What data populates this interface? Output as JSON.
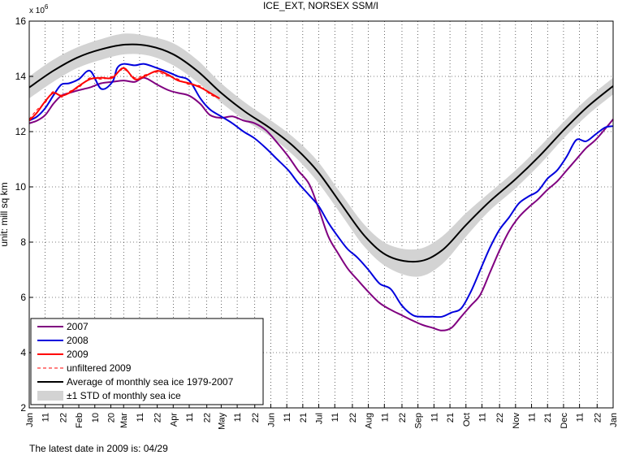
{
  "chart_data": {
    "type": "line",
    "title": "ICE_EXT, NORSEX SSM/I",
    "ylabel": "unit: mill sq km",
    "y_multiplier": "x 10",
    "y_multiplier_exp": "6",
    "ylim": [
      2,
      16
    ],
    "yticks": [
      "2",
      "4",
      "6",
      "8",
      "10",
      "12",
      "14",
      "16"
    ],
    "x_domain_days": [
      0,
      365
    ],
    "xticks": [
      {
        "day": 0,
        "label": "Jan"
      },
      {
        "day": 10,
        "label": "11"
      },
      {
        "day": 21,
        "label": "22"
      },
      {
        "day": 31,
        "label": "Feb"
      },
      {
        "day": 41,
        "label": "10"
      },
      {
        "day": 51,
        "label": "20"
      },
      {
        "day": 59,
        "label": "Mar"
      },
      {
        "day": 69,
        "label": "11"
      },
      {
        "day": 80,
        "label": "22"
      },
      {
        "day": 90,
        "label": "Apr"
      },
      {
        "day": 100,
        "label": "11"
      },
      {
        "day": 111,
        "label": "22"
      },
      {
        "day": 120,
        "label": "May"
      },
      {
        "day": 130,
        "label": "11"
      },
      {
        "day": 141,
        "label": "22"
      },
      {
        "day": 151,
        "label": "Jun"
      },
      {
        "day": 161,
        "label": "11"
      },
      {
        "day": 171,
        "label": "21"
      },
      {
        "day": 181,
        "label": "Jul"
      },
      {
        "day": 191,
        "label": "11"
      },
      {
        "day": 202,
        "label": "22"
      },
      {
        "day": 212,
        "label": "Aug"
      },
      {
        "day": 222,
        "label": "11"
      },
      {
        "day": 233,
        "label": "22"
      },
      {
        "day": 243,
        "label": "Sep"
      },
      {
        "day": 253,
        "label": "11"
      },
      {
        "day": 263,
        "label": "21"
      },
      {
        "day": 273,
        "label": "Oct"
      },
      {
        "day": 283,
        "label": "11"
      },
      {
        "day": 294,
        "label": "22"
      },
      {
        "day": 304,
        "label": "Nov"
      },
      {
        "day": 314,
        "label": "11"
      },
      {
        "day": 324,
        "label": "21"
      },
      {
        "day": 334,
        "label": "Dec"
      },
      {
        "day": 344,
        "label": "11"
      },
      {
        "day": 355,
        "label": "22"
      },
      {
        "day": 365,
        "label": "Jan"
      }
    ],
    "grid": true,
    "legend_position": "bottom-left",
    "footer": "The latest date in 2009 is: 04/29",
    "std_band": {
      "name": "±1 STD of monthly sea ice",
      "color": "#d3d3d3",
      "x": [
        0,
        15,
        30,
        45,
        60,
        75,
        90,
        105,
        120,
        135,
        150,
        165,
        180,
        195,
        210,
        225,
        243,
        258,
        273,
        288,
        304,
        319,
        334,
        349,
        365
      ],
      "lower": [
        13.2,
        13.8,
        14.3,
        14.6,
        14.8,
        14.75,
        14.4,
        13.8,
        13.05,
        12.4,
        11.85,
        11.15,
        10.2,
        9.0,
        7.8,
        7.05,
        6.75,
        7.2,
        8.2,
        9.15,
        9.95,
        10.8,
        11.75,
        12.6,
        13.35
      ],
      "upper": [
        14.0,
        14.6,
        15.05,
        15.35,
        15.55,
        15.45,
        15.2,
        14.6,
        13.75,
        13.05,
        12.45,
        11.8,
        10.95,
        9.75,
        8.6,
        7.9,
        7.75,
        8.2,
        9.05,
        9.8,
        10.6,
        11.45,
        12.35,
        13.2,
        13.95
      ]
    },
    "series": [
      {
        "name": "2007",
        "color": "#800080",
        "x": [
          0,
          5,
          10,
          15,
          20,
          25,
          31,
          38,
          45,
          52,
          59,
          66,
          72,
          80,
          87,
          93,
          100,
          107,
          113,
          120,
          127,
          134,
          141,
          148,
          155,
          162,
          168,
          175,
          181,
          187,
          193,
          199,
          205,
          212,
          219,
          226,
          233,
          240,
          246,
          252,
          258,
          264,
          270,
          276,
          282,
          288,
          294,
          300,
          306,
          312,
          318,
          324,
          330,
          336,
          342,
          348,
          354,
          360,
          365
        ],
        "y": [
          12.3,
          12.4,
          12.6,
          13.0,
          13.3,
          13.4,
          13.5,
          13.6,
          13.75,
          13.8,
          13.85,
          13.8,
          13.95,
          13.7,
          13.5,
          13.4,
          13.3,
          13.0,
          12.6,
          12.5,
          12.55,
          12.4,
          12.3,
          12.05,
          11.6,
          11.1,
          10.6,
          10.1,
          9.2,
          8.2,
          7.6,
          7.05,
          6.65,
          6.2,
          5.8,
          5.55,
          5.35,
          5.15,
          5.0,
          4.9,
          4.8,
          4.9,
          5.3,
          5.7,
          6.1,
          6.9,
          7.7,
          8.4,
          8.9,
          9.25,
          9.55,
          9.9,
          10.2,
          10.6,
          11.0,
          11.4,
          11.7,
          12.1,
          12.45
        ]
      },
      {
        "name": "2008",
        "color": "#0000dd",
        "x": [
          0,
          5,
          10,
          15,
          20,
          25,
          31,
          38,
          45,
          52,
          55,
          59,
          66,
          72,
          80,
          87,
          93,
          100,
          107,
          113,
          120,
          127,
          134,
          141,
          148,
          155,
          162,
          168,
          175,
          181,
          187,
          193,
          199,
          205,
          212,
          219,
          226,
          233,
          240,
          246,
          252,
          258,
          264,
          270,
          276,
          282,
          288,
          294,
          300,
          306,
          312,
          318,
          324,
          330,
          336,
          342,
          348,
          354,
          360,
          365
        ],
        "y": [
          12.4,
          12.55,
          12.85,
          13.3,
          13.7,
          13.75,
          13.9,
          14.2,
          13.55,
          13.8,
          14.3,
          14.45,
          14.4,
          14.45,
          14.3,
          14.15,
          14.0,
          13.85,
          13.2,
          12.8,
          12.55,
          12.3,
          12.0,
          11.75,
          11.4,
          11.0,
          10.6,
          10.15,
          9.7,
          9.3,
          8.7,
          8.2,
          7.75,
          7.45,
          7.0,
          6.5,
          6.3,
          5.7,
          5.35,
          5.3,
          5.3,
          5.3,
          5.45,
          5.6,
          6.2,
          7.0,
          7.8,
          8.45,
          8.9,
          9.4,
          9.65,
          9.85,
          10.3,
          10.6,
          11.1,
          11.7,
          11.65,
          11.9,
          12.15,
          12.2
        ]
      },
      {
        "name": "2009",
        "color": "#ff0000",
        "x": [
          0,
          5,
          10,
          15,
          20,
          25,
          31,
          38,
          45,
          52,
          59,
          66,
          72,
          80,
          87,
          93,
          100,
          107,
          113,
          119
        ],
        "y": [
          12.4,
          12.7,
          13.1,
          13.4,
          13.3,
          13.4,
          13.65,
          13.9,
          13.95,
          13.95,
          14.3,
          13.9,
          14.0,
          14.2,
          14.05,
          13.85,
          13.75,
          13.6,
          13.4,
          13.2
        ]
      },
      {
        "name": "unfiltered 2009",
        "color": "#ff0000",
        "dashed": true,
        "x": [
          0,
          5,
          10,
          15,
          20,
          25,
          31,
          38,
          45,
          52,
          59,
          66,
          72,
          80,
          87,
          93,
          100,
          107,
          113,
          119
        ],
        "y": [
          12.45,
          12.8,
          13.05,
          13.45,
          13.25,
          13.45,
          13.6,
          13.95,
          13.9,
          14.0,
          14.25,
          13.95,
          14.05,
          14.15,
          14.0,
          13.9,
          13.7,
          13.65,
          13.35,
          13.2
        ]
      },
      {
        "name": "Average of monthly sea ice 1979-2007",
        "color": "#000000",
        "x": [
          0,
          15,
          30,
          45,
          60,
          75,
          90,
          105,
          120,
          135,
          150,
          165,
          180,
          195,
          210,
          225,
          243,
          258,
          273,
          288,
          304,
          319,
          334,
          349,
          365
        ],
        "y": [
          13.6,
          14.2,
          14.68,
          14.98,
          15.15,
          15.1,
          14.8,
          14.2,
          13.4,
          12.72,
          12.15,
          11.48,
          10.58,
          9.38,
          8.2,
          7.48,
          7.3,
          7.7,
          8.62,
          9.48,
          10.28,
          11.12,
          12.05,
          12.9,
          13.65
        ]
      }
    ]
  }
}
